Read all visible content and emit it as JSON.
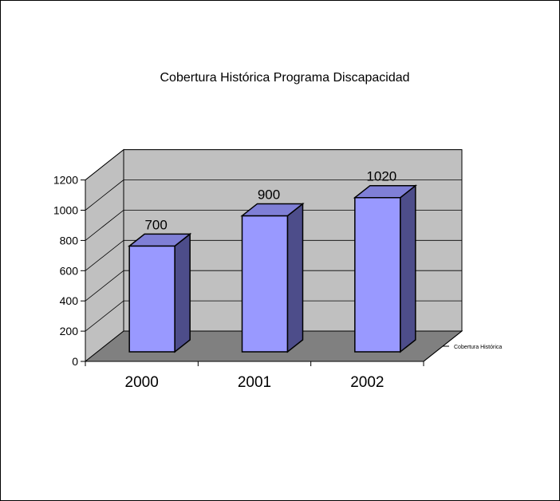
{
  "chart_data": {
    "type": "bar",
    "title": "Cobertura Histórica Programa Discapacidad",
    "categories": [
      "2000",
      "2001",
      "2002"
    ],
    "series": [
      {
        "name": "Cobertura Histórica",
        "values": [
          700,
          900,
          1020
        ]
      }
    ],
    "data_labels": [
      "700",
      "900",
      "1020"
    ],
    "y_ticks": [
      "0",
      "200",
      "400",
      "600",
      "800",
      "1000",
      "1200"
    ],
    "ylim": [
      0,
      1200
    ],
    "grid": true,
    "legend": "none",
    "three_d": true,
    "colors": {
      "bar_front": "#9999ff",
      "bar_side": "#4d4d8a",
      "bar_top": "#7f7fd6",
      "wall": "#c0c0c0",
      "floor": "#808080"
    }
  }
}
